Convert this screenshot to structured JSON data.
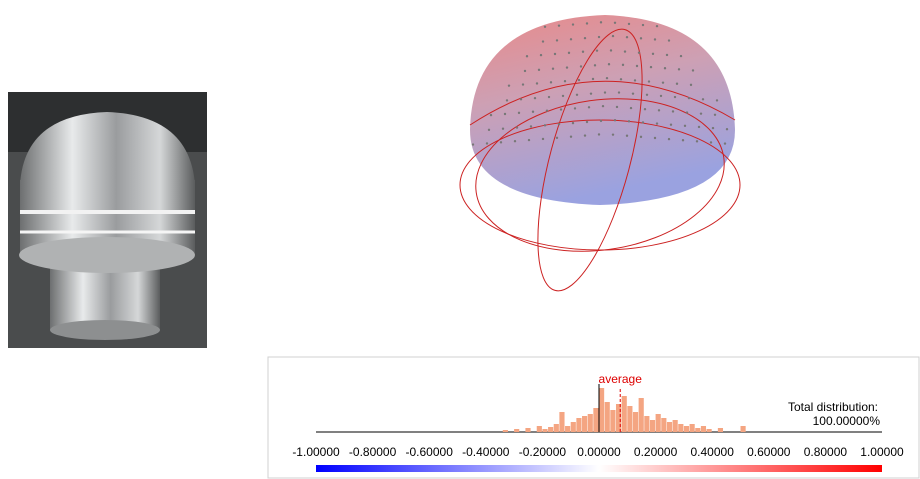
{
  "chart_data": {
    "type": "histogram",
    "bins": [
      -0.34,
      -0.32,
      -0.3,
      -0.28,
      -0.26,
      -0.24,
      -0.22,
      -0.2,
      -0.18,
      -0.16,
      -0.14,
      -0.12,
      -0.1,
      -0.08,
      -0.06,
      -0.04,
      -0.02,
      0.0,
      0.02,
      0.04,
      0.06,
      0.08,
      0.1,
      0.12,
      0.14,
      0.16,
      0.18,
      0.2,
      0.22,
      0.24,
      0.26,
      0.28,
      0.3,
      0.32,
      0.34,
      0.36,
      0.38,
      0.4,
      0.42,
      0.44,
      0.46,
      0.48,
      0.5,
      0.52
    ],
    "counts": [
      2,
      0,
      3,
      0,
      4,
      0,
      6,
      3,
      5,
      8,
      20,
      6,
      10,
      14,
      16,
      18,
      24,
      44,
      30,
      22,
      28,
      36,
      26,
      20,
      34,
      16,
      12,
      18,
      14,
      10,
      12,
      8,
      6,
      8,
      4,
      6,
      3,
      0,
      4,
      0,
      0,
      0,
      6
    ],
    "color": "#f4a582",
    "xlim": [
      -1,
      1
    ],
    "xticks": [
      {
        "value": -1,
        "label": "-1.00000"
      },
      {
        "value": -0.8,
        "label": "-0.80000"
      },
      {
        "value": -0.6,
        "label": "-0.60000"
      },
      {
        "value": -0.4,
        "label": "-0.40000"
      },
      {
        "value": -0.2,
        "label": "-0.20000"
      },
      {
        "value": 0,
        "label": "0.00000"
      },
      {
        "value": 0.2,
        "label": "0.20000"
      },
      {
        "value": 0.4,
        "label": "0.40000"
      },
      {
        "value": 0.6,
        "label": "0.60000"
      },
      {
        "value": 0.8,
        "label": "0.80000"
      },
      {
        "value": 1,
        "label": "1.00000"
      }
    ],
    "average": {
      "value": 0.075,
      "label": "average"
    },
    "annotation": "Total distribution:",
    "total": {
      "value": 100,
      "label": "100.00000%"
    },
    "colormap": [
      "#0000ff",
      "#ffffff",
      "#ff0000"
    ]
  }
}
